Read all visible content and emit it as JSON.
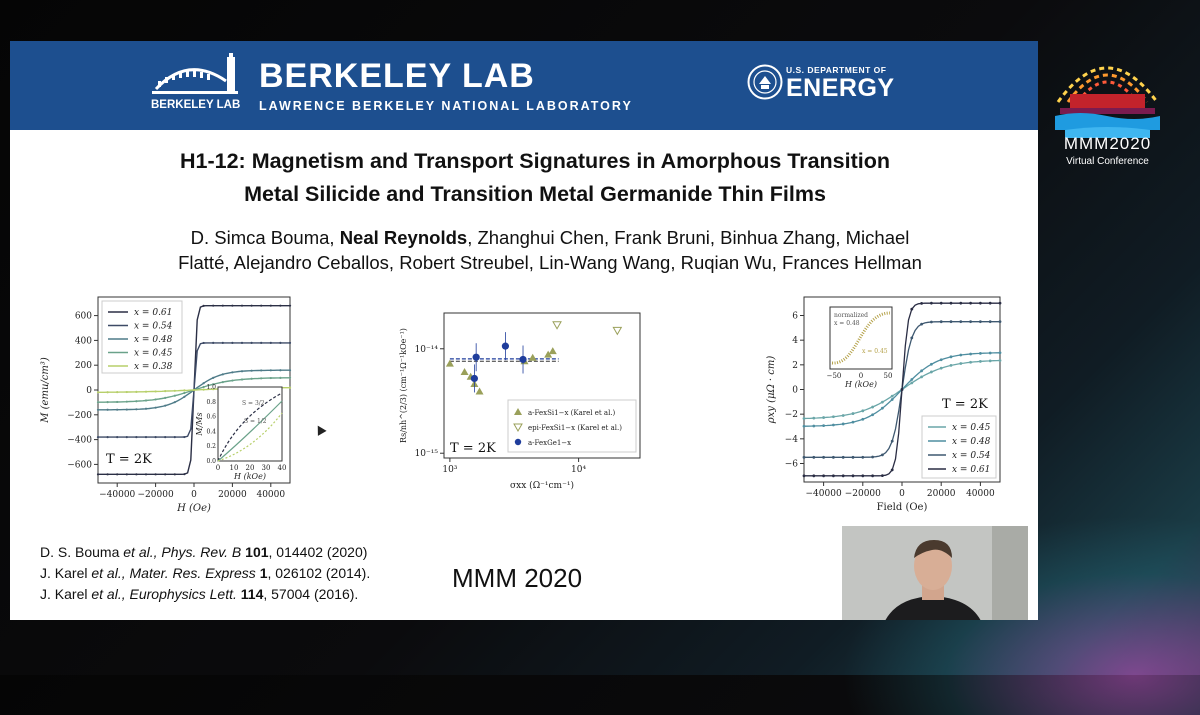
{
  "banner": {
    "lab_wordmark": "BERKELEY LAB",
    "lab_logo_small": "BERKELEY LAB",
    "lab_subtitle": "LAWRENCE BERKELEY NATIONAL LABORATORY",
    "doe_small": "U.S. DEPARTMENT OF",
    "doe_big": "ENERGY",
    "color": "#1d4f8f"
  },
  "slide": {
    "title_line1": "H1-12: Magnetism and Transport Signatures in Amorphous Transition",
    "title_line2": "Metal Silicide and Transition Metal Germanide Thin Films",
    "authors_before": "D. Simca Bouma, ",
    "authors_bold": "Neal Reynolds",
    "authors_after": ", Zhanghui Chen, Frank Bruni, Binhua Zhang, Michael",
    "authors_line2": "Flatté, Alejandro Ceballos, Robert Streubel, Lin-Wang Wang, Ruqian Wu, Frances Hellman",
    "watermark": "MMM 2020"
  },
  "references": [
    {
      "authors": "D. S. Bouma ",
      "etal": "et al., Phys. Rev. B ",
      "vol": "101",
      "rest": ", 014402 (2020)"
    },
    {
      "authors": "J. Karel ",
      "etal": "et al., Mater. Res. Express ",
      "vol": "1",
      "rest": ", 026102 (2014)."
    },
    {
      "authors": "J. Karel ",
      "etal": "et al., Europhysics Lett. ",
      "vol": "114",
      "rest": ", 57004 (2016)."
    }
  ],
  "conference": {
    "title": "MMM2020",
    "subtitle": "Virtual Conference"
  },
  "chart_data": [
    {
      "type": "line",
      "xlabel": "H (Oe)",
      "ylabel": "M (emu/cm³)",
      "xlim": [
        -50000,
        50000
      ],
      "ylim": [
        -750,
        750
      ],
      "x_ticks": [
        "−40000",
        "−20000",
        "0",
        "20000",
        "40000"
      ],
      "y_ticks": [
        "600",
        "400",
        "200",
        "0",
        "−200",
        "−400",
        "−600"
      ],
      "legend": "top-left",
      "annotation": "T = 2K",
      "series": [
        {
          "name": "x = 0.61",
          "color": "#2b2f45",
          "sat": 680
        },
        {
          "name": "x = 0.54",
          "color": "#3d4a66",
          "sat": 380
        },
        {
          "name": "x = 0.48",
          "color": "#4e7b88",
          "sat": 160
        },
        {
          "name": "x = 0.45",
          "color": "#6aa28a",
          "sat": 100
        },
        {
          "name": "x = 0.38",
          "color": "#b7cf6a",
          "sat": 20
        }
      ],
      "inset": {
        "xlabel": "H (kOe)",
        "ylabel": "M/Ms",
        "x_ticks": [
          "0",
          "10",
          "20",
          "30",
          "40"
        ],
        "y_ticks": [
          "0.0",
          "0.2",
          "0.4",
          "0.6",
          "0.8",
          "1.0"
        ],
        "labels": [
          "S = 3/2",
          "S = 1/2"
        ]
      }
    },
    {
      "type": "scatter",
      "xlabel": "σxx (Ω⁻¹cm⁻¹)",
      "ylabel": "Rs/nh^(2/3) (cm⁻¹Ω⁻¹kOe⁻¹)",
      "x_log": true,
      "y_log": true,
      "x_ticks": [
        "10³",
        "10⁴"
      ],
      "y_ticks": [
        "10⁻¹⁴",
        "10⁻¹⁵"
      ],
      "annotation": "T = 2K",
      "legend": "bottom-right",
      "series": [
        {
          "name": "a-FexSi1−x (Karel et al.)",
          "marker": "triangle-up",
          "color": "#9aa05a",
          "points": [
            [
              1000,
              7.2e-15
            ],
            [
              1300,
              6e-15
            ],
            [
              1450,
              5.4e-15
            ],
            [
              1550,
              4.6e-15
            ],
            [
              1700,
              3.9e-15
            ],
            [
              3800,
              7.6e-15
            ],
            [
              4400,
              8.2e-15
            ],
            [
              5800,
              8.8e-15
            ],
            [
              6300,
              9.5e-15
            ]
          ]
        },
        {
          "name": "epi-FexSi1−x (Karel et al.)",
          "marker": "triangle-down",
          "color": "#9aa05a",
          "points": [
            [
              6800,
              1.7e-14
            ],
            [
              20000,
              1.5e-14
            ]
          ]
        },
        {
          "name": "a-FexGe1−x",
          "marker": "hexagon",
          "color": "#1f3d9c",
          "points": [
            [
              1600,
              8.3e-15
            ],
            [
              1550,
              5.2e-15
            ],
            [
              2700,
              1.06e-14
            ],
            [
              3700,
              7.9e-15
            ]
          ]
        }
      ]
    },
    {
      "type": "line",
      "xlabel": "Field (Oe)",
      "ylabel": "ρxy (μΩ · cm)",
      "xlim": [
        -50000,
        50000
      ],
      "ylim": [
        -7.5,
        7.5
      ],
      "x_ticks": [
        "−40000",
        "−20000",
        "0",
        "20000",
        "40000"
      ],
      "y_ticks": [
        "6",
        "4",
        "2",
        "0",
        "−2",
        "−4",
        "−6"
      ],
      "annotation": "T = 2K",
      "legend": "bottom-right",
      "series": [
        {
          "name": "x = 0.45",
          "color": "#6aa6a8",
          "sat": 2.4
        },
        {
          "name": "x = 0.48",
          "color": "#4f8ea0",
          "sat": 3.0
        },
        {
          "name": "x = 0.54",
          "color": "#3e5870",
          "sat": 5.5
        },
        {
          "name": "x = 0.61",
          "color": "#2a2d44",
          "sat": 7.0
        }
      ],
      "inset": {
        "xlabel": "H (kOe)",
        "x_ticks": [
          "−50",
          "0",
          "50"
        ],
        "labels": [
          "normalized",
          "x = 0.48",
          "x = 0.45"
        ]
      }
    }
  ]
}
